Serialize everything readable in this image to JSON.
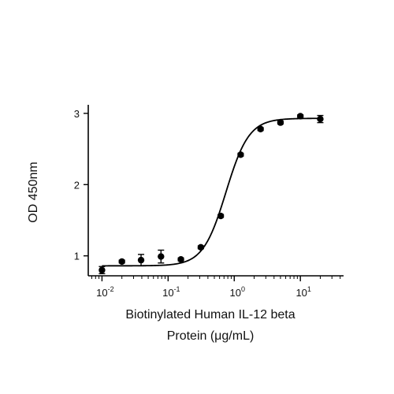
{
  "chart_data": {
    "type": "scatter",
    "title": "",
    "xlabel_lines": [
      "Biotinylated Human IL-12 beta",
      "Protein (μg/mL)"
    ],
    "ylabel": "OD 450nm",
    "x_scale": "log",
    "xlim": [
      0.0062,
      45
    ],
    "ylim": [
      0.72,
      3.12
    ],
    "x_ticks": [
      {
        "value": 0.01,
        "base": "10",
        "exp": "-2"
      },
      {
        "value": 0.1,
        "base": "10",
        "exp": "-1"
      },
      {
        "value": 1,
        "base": "10",
        "exp": "0"
      },
      {
        "value": 10,
        "base": "10",
        "exp": "1"
      }
    ],
    "y_ticks": [
      {
        "value": 1,
        "label": "1"
      },
      {
        "value": 2,
        "label": "2"
      },
      {
        "value": 3,
        "label": "3"
      }
    ],
    "grid": false,
    "legend": "none",
    "series": [
      {
        "points": [
          {
            "x": 0.01,
            "y": 0.8,
            "err": 0.05
          },
          {
            "x": 0.02,
            "y": 0.92,
            "err": 0.02
          },
          {
            "x": 0.039,
            "y": 0.94,
            "err": 0.08
          },
          {
            "x": 0.078,
            "y": 0.99,
            "err": 0.09
          },
          {
            "x": 0.156,
            "y": 0.95,
            "err": 0.02
          },
          {
            "x": 0.3125,
            "y": 1.12,
            "err": 0.02
          },
          {
            "x": 0.625,
            "y": 1.56,
            "err": 0.02
          },
          {
            "x": 1.25,
            "y": 2.42,
            "err": 0.02
          },
          {
            "x": 2.5,
            "y": 2.78,
            "err": 0.02
          },
          {
            "x": 5,
            "y": 2.87,
            "err": 0.02
          },
          {
            "x": 10,
            "y": 2.96,
            "err": 0.02
          },
          {
            "x": 20,
            "y": 2.92,
            "err": 0.05
          }
        ],
        "fit": {
          "model": "4PL",
          "bottom": 0.86,
          "top": 2.93,
          "ec50": 0.75,
          "hill": 2.5
        }
      }
    ],
    "colors": {
      "marker": "#000000",
      "line": "#000000",
      "axis": "#000000"
    }
  }
}
